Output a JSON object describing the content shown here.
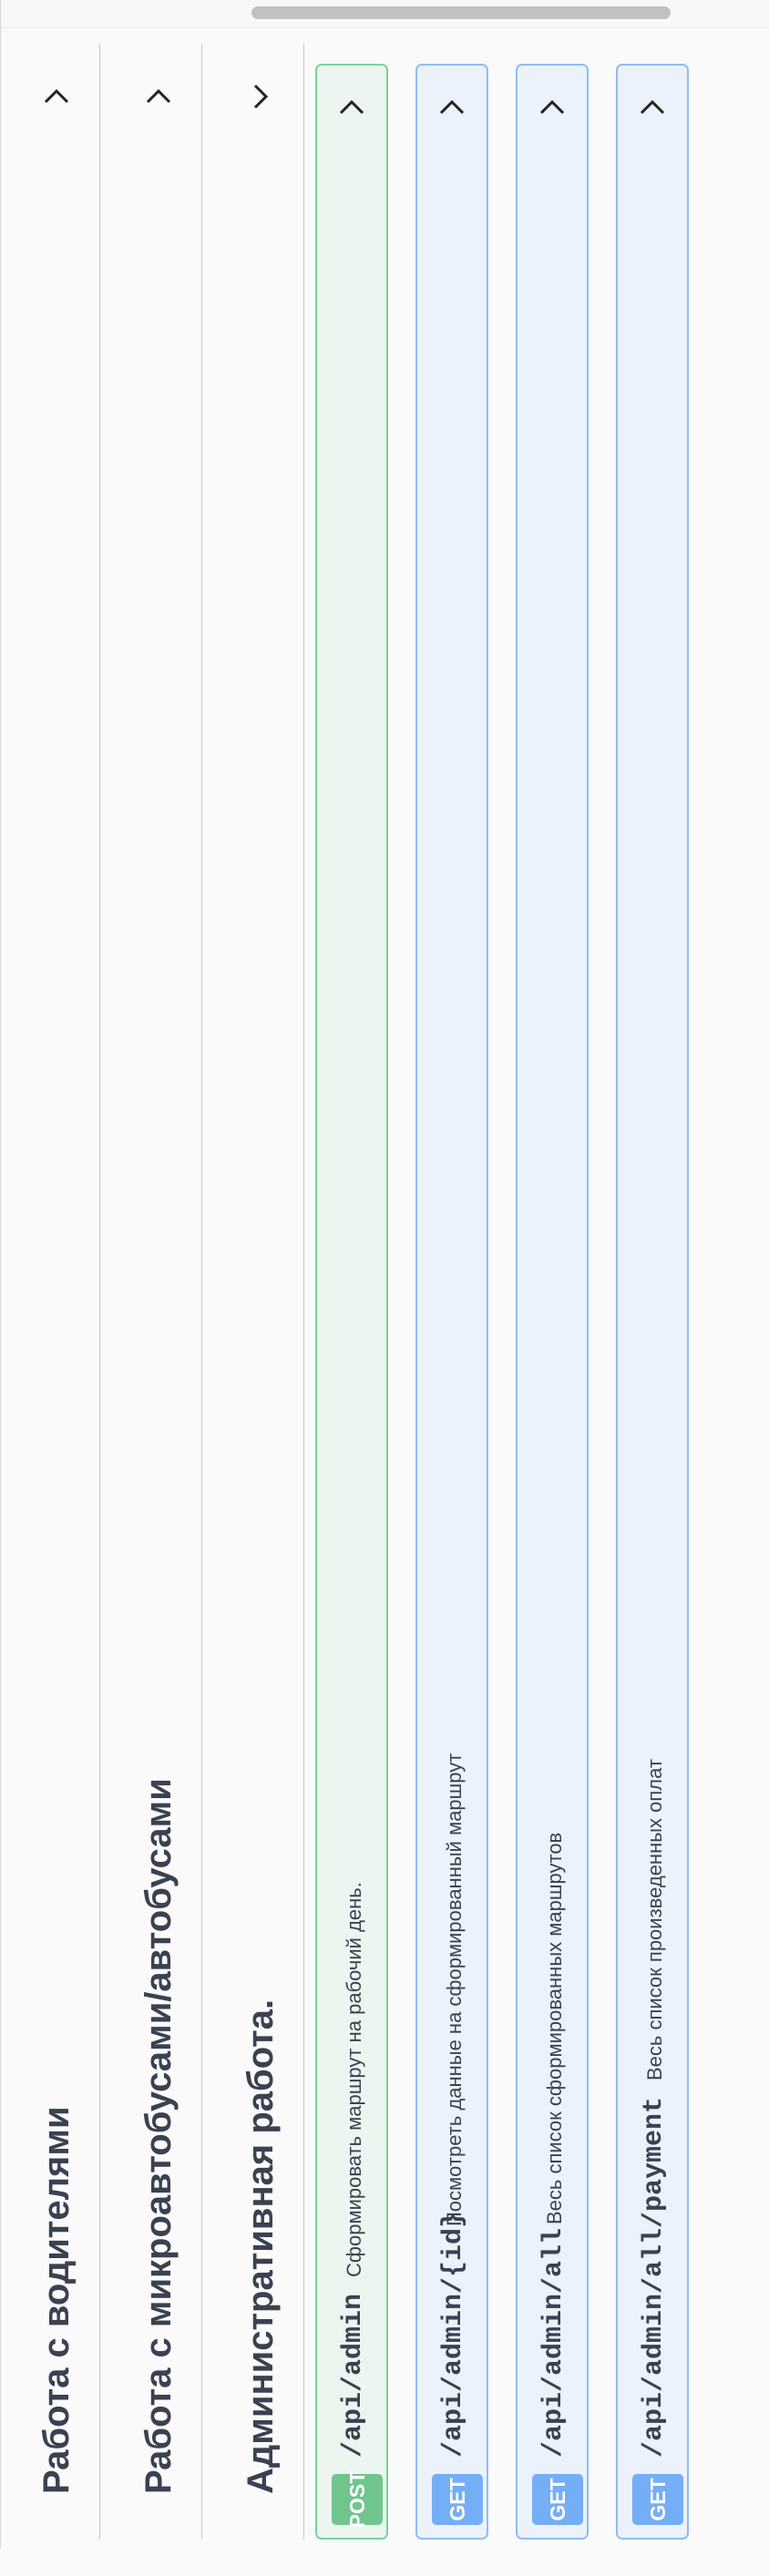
{
  "scrollbar": {
    "label": ""
  },
  "sections": [
    {
      "title": "Работа с водителями",
      "expanded": false
    },
    {
      "title": "Работа с микроавтобусами/автобусами",
      "expanded": false
    },
    {
      "title": "Административная работа.",
      "expanded": true
    }
  ],
  "operations": [
    {
      "method": "POST",
      "path": "/api/admin",
      "description": "Сформировать маршрут на рабочий день."
    },
    {
      "method": "GET",
      "path": "/api/admin/{id}",
      "description": "Посмотреть данные на сформированный маршрут"
    },
    {
      "method": "GET",
      "path": "/api/admin/all",
      "description": "Весь список сформированных маршрутов"
    },
    {
      "method": "GET",
      "path": "/api/admin/all/payment",
      "description": "Весь список произведенных оплат"
    }
  ],
  "icons": {
    "collapsed": "chevron-right-icon",
    "expanded": "chevron-down-icon"
  },
  "colors": {
    "post": "#49cc90",
    "get": "#61affe",
    "text": "#3b4151"
  }
}
